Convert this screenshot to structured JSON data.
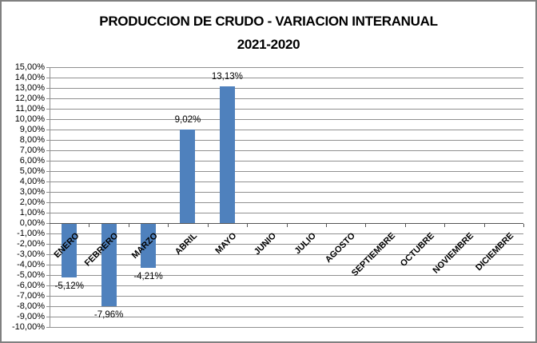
{
  "title": {
    "line1": "PRODUCCION DE CRUDO - VARIACION INTERANUAL",
    "line2": "2021-2020"
  },
  "chart_data": {
    "type": "bar",
    "title": "PRODUCCION DE CRUDO - VARIACION INTERANUAL 2021-2020",
    "xlabel": "",
    "ylabel": "",
    "categories": [
      "ENERO",
      "FEBRERO",
      "MARZO",
      "ABRIL",
      "MAYO",
      "JUNIO",
      "JULIO",
      "AGOSTO",
      "SEPTIEMBRE",
      "OCTUBRE",
      "NOVIEMBRE",
      "DICIEMBRE"
    ],
    "values": [
      -5.12,
      -7.96,
      -4.21,
      9.02,
      13.13,
      null,
      null,
      null,
      null,
      null,
      null,
      null
    ],
    "data_labels": [
      "-5,12%",
      "-7,96%",
      "-4,21%",
      "9,02%",
      "13,13%",
      "",
      "",
      "",
      "",
      "",
      "",
      ""
    ],
    "ylim": [
      -10,
      15
    ],
    "ytick_step": 1,
    "ytick_labels": [
      "15,00%",
      "14,00%",
      "13,00%",
      "12,00%",
      "11,00%",
      "10,00%",
      "9,00%",
      "8,00%",
      "7,00%",
      "6,00%",
      "5,00%",
      "4,00%",
      "3,00%",
      "2,00%",
      "1,00%",
      "0,00%",
      "-1,00%",
      "-2,00%",
      "-3,00%",
      "-4,00%",
      "-5,00%",
      "-6,00%",
      "-7,00%",
      "-8,00%",
      "-9,00%",
      "-10,00%"
    ],
    "grid": true,
    "legend": "none",
    "colors": {
      "bar": "#4F81BD",
      "gridline": "#909090",
      "axis": "#555555",
      "frame_border": "#808080",
      "text": "#000000",
      "background": "#FFFFFF"
    }
  }
}
